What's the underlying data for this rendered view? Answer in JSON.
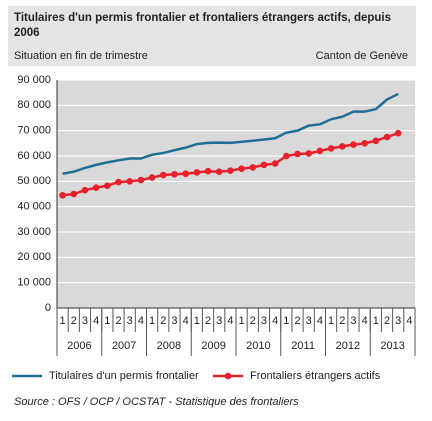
{
  "chart_data": {
    "type": "line",
    "title": "Titulaires d'un permis frontalier et frontaliers étrangers actifs, depuis 2006",
    "subtitle": "Situation en fin de trimestre",
    "region": "Canton de Genève",
    "source": "Source : OFS / OCP / OCSTAT  - Statistique des frontaliers",
    "categories": [
      "1",
      "2",
      "3",
      "4",
      "1",
      "2",
      "3",
      "4",
      "1",
      "2",
      "3",
      "4",
      "1",
      "2",
      "3",
      "4",
      "1",
      "2",
      "3",
      "4",
      "1",
      "2",
      "3",
      "4",
      "1",
      "2",
      "3",
      "4",
      "1",
      "2",
      "3",
      "4"
    ],
    "years": [
      "2006",
      "2007",
      "2008",
      "2009",
      "2010",
      "2011",
      "2012",
      "2013"
    ],
    "series": [
      {
        "name": "Titulaires d'un permis frontalier",
        "color": "#1f6e96",
        "markers": false,
        "values": [
          53000,
          53800,
          55300,
          56500,
          57500,
          58300,
          59000,
          59000,
          60500,
          61200,
          62300,
          63300,
          64700,
          65200,
          65300,
          65200,
          65600,
          66000,
          66500,
          67000,
          69200,
          70000,
          72000,
          72500,
          74500,
          75500,
          77500,
          77500,
          78500,
          82300,
          84500,
          null
        ]
      },
      {
        "name": "Frontaliers étrangers actifs",
        "color": "#e8202a",
        "markers": true,
        "values": [
          44500,
          45000,
          46500,
          47500,
          48300,
          49700,
          50000,
          50500,
          51500,
          52500,
          52800,
          53000,
          53500,
          54000,
          53800,
          54200,
          55000,
          55500,
          56500,
          57000,
          60000,
          60800,
          61000,
          62000,
          63000,
          63800,
          64500,
          65000,
          66000,
          67500,
          69000,
          null
        ]
      }
    ],
    "ylim": [
      0,
      90000
    ],
    "yticks": [
      {
        "value": 0,
        "label": "0"
      },
      {
        "value": 10000,
        "label": "10 000"
      },
      {
        "value": 20000,
        "label": "20 000"
      },
      {
        "value": 30000,
        "label": "30 000"
      },
      {
        "value": 40000,
        "label": "40 000"
      },
      {
        "value": 50000,
        "label": "50 000"
      },
      {
        "value": 60000,
        "label": "60 000"
      },
      {
        "value": 70000,
        "label": "70 000"
      },
      {
        "value": 80000,
        "label": "80 000"
      },
      {
        "value": 90000,
        "label": "90 000"
      }
    ],
    "grid": true
  }
}
